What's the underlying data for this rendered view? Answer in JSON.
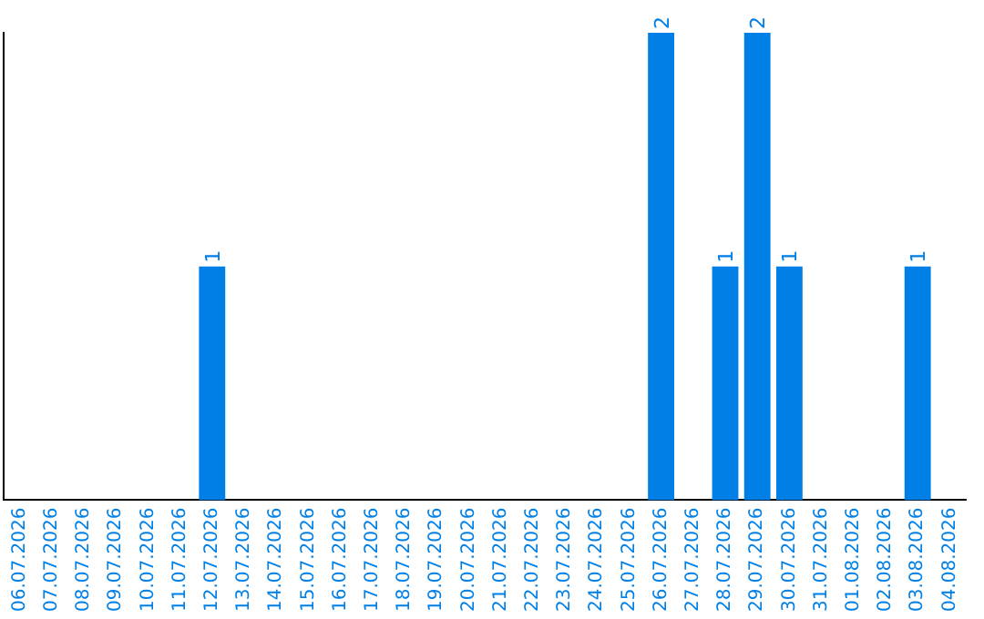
{
  "chart_data": {
    "type": "bar",
    "categories": [
      "06.07.2026",
      "07.07.2026",
      "08.07.2026",
      "09.07.2026",
      "10.07.2026",
      "11.07.2026",
      "12.07.2026",
      "13.07.2026",
      "14.07.2026",
      "15.07.2026",
      "16.07.2026",
      "17.07.2026",
      "18.07.2026",
      "19.07.2026",
      "20.07.2026",
      "21.07.2026",
      "22.07.2026",
      "23.07.2026",
      "24.07.2026",
      "25.07.2026",
      "26.07.2026",
      "27.07.2026",
      "28.07.2026",
      "29.07.2026",
      "30.07.2026",
      "31.07.2026",
      "01.08.2026",
      "02.08.2026",
      "03.08.2026",
      "04.08.2026"
    ],
    "values": [
      0,
      0,
      0,
      0,
      0,
      0,
      1,
      0,
      0,
      0,
      0,
      0,
      0,
      0,
      0,
      0,
      0,
      0,
      0,
      0,
      2,
      0,
      1,
      2,
      1,
      0,
      0,
      0,
      1,
      0
    ],
    "value_labels": [
      null,
      null,
      null,
      null,
      null,
      null,
      "1",
      null,
      null,
      null,
      null,
      null,
      null,
      null,
      null,
      null,
      null,
      null,
      null,
      null,
      "2",
      null,
      "1",
      "2",
      "1",
      null,
      null,
      null,
      "1",
      null
    ],
    "color": "#0080e6",
    "grid": false,
    "legend": false,
    "tick_labels": "x"
  }
}
